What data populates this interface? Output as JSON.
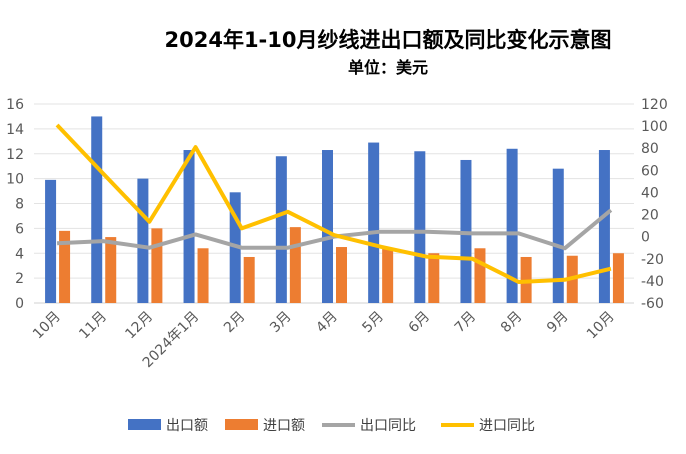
{
  "chart_data": {
    "type": "bar+line",
    "title": "2024年1-10月纱线进出口额及同比变化示意图",
    "subtitle": "单位：美元",
    "categories": [
      "10月",
      "11月",
      "12月",
      "2024年1月",
      "2月",
      "3月",
      "4月",
      "5月",
      "6月",
      "7月",
      "8月",
      "9月",
      "10月"
    ],
    "left_axis": {
      "range": [
        0,
        16
      ],
      "ticks": [
        "0",
        "2",
        "4",
        "6",
        "8",
        "10",
        "12",
        "14",
        "16"
      ]
    },
    "right_axis": {
      "range": [
        -60,
        120
      ],
      "ticks": [
        "-60",
        "-40",
        "-20",
        "0",
        "20",
        "40",
        "60",
        "80",
        "100",
        "120"
      ]
    },
    "grid": true,
    "legend_position": "bottom",
    "series": [
      {
        "name": "出口额",
        "type": "bar",
        "axis": "left",
        "color": "#4472C4",
        "values": [
          9.9,
          15.0,
          10.0,
          12.3,
          8.9,
          11.8,
          12.3,
          12.9,
          12.2,
          11.5,
          12.4,
          10.8,
          12.3
        ]
      },
      {
        "name": "进口额",
        "type": "bar",
        "axis": "left",
        "color": "#ED7D31",
        "values": [
          5.8,
          5.3,
          6.0,
          4.4,
          3.7,
          6.1,
          4.5,
          4.4,
          4.0,
          4.4,
          3.7,
          3.8,
          4.0
        ]
      },
      {
        "name": "出口同比",
        "type": "line",
        "axis": "right",
        "color": "#A5A5A5",
        "values": [
          -6,
          -4,
          -10,
          2,
          -10,
          -10,
          0,
          4.5,
          4.5,
          3,
          3,
          -10.5,
          24
        ]
      },
      {
        "name": "进口同比",
        "type": "line",
        "axis": "right",
        "color": "#FFC000",
        "values": [
          101,
          57,
          13.5,
          81,
          7.5,
          22.5,
          1.5,
          -9,
          -18,
          -20,
          -41,
          -39,
          -29
        ]
      }
    ]
  }
}
